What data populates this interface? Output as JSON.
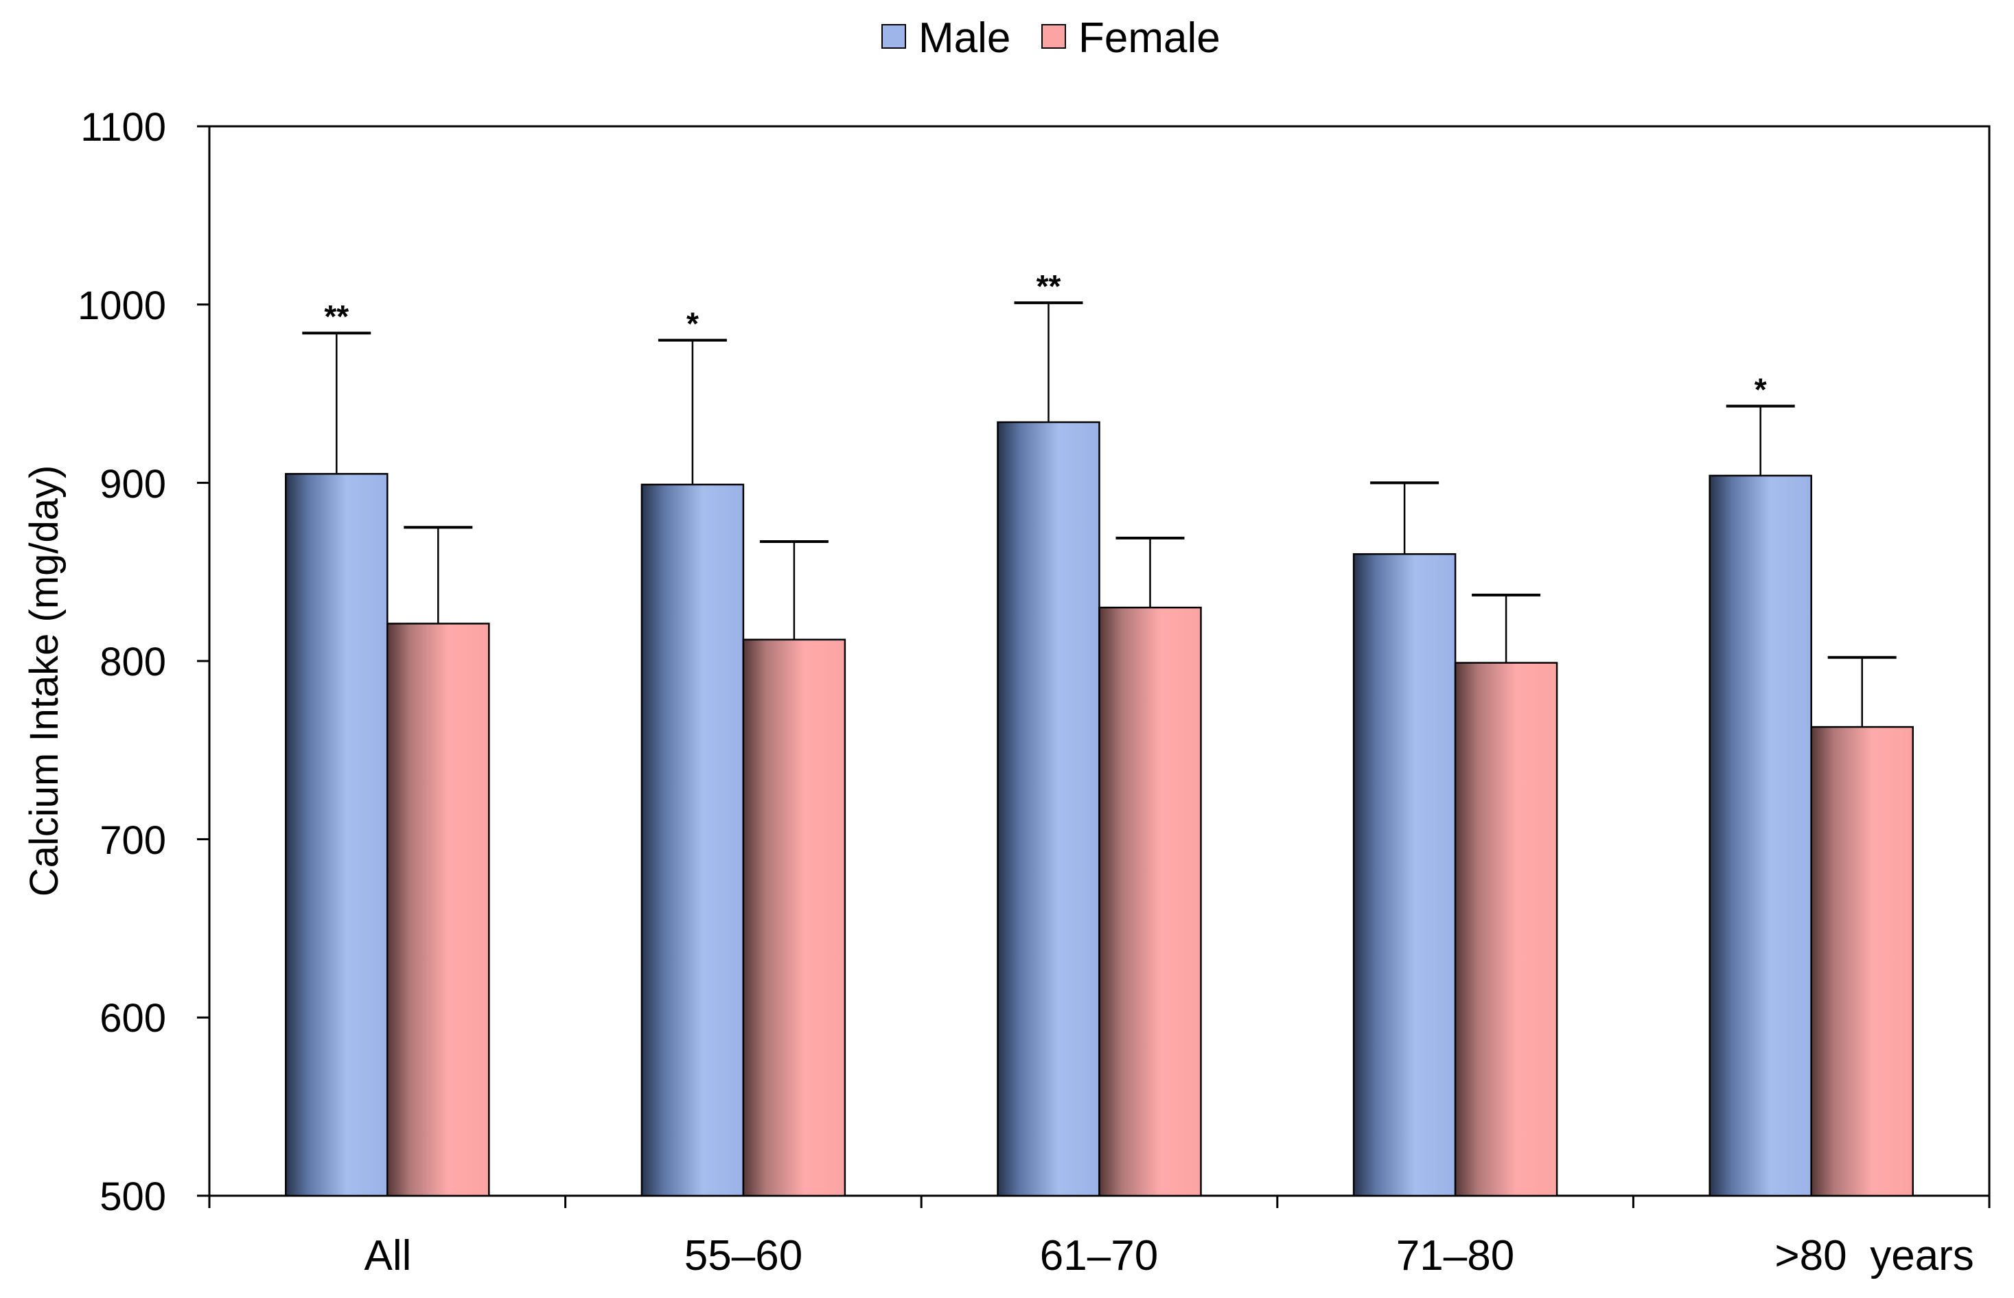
{
  "chart_data": {
    "type": "bar",
    "title": "",
    "xlabel": "",
    "ylabel": "Calcium Intake (mg/day)",
    "ylim": [
      500,
      1100
    ],
    "yticks": [
      "500",
      "600",
      "700",
      "800",
      "900",
      "1000",
      "1100"
    ],
    "ytick_values": [
      500,
      600,
      700,
      800,
      900,
      1000,
      1100
    ],
    "categories": [
      "All",
      "55–60",
      "61–70",
      "71–80",
      ">80"
    ],
    "category_suffix": "years",
    "grid": false,
    "legend_position": "top-center",
    "series": [
      {
        "name": "Male",
        "color": "#9DB5E8",
        "values": [
          905,
          899,
          934,
          860,
          904
        ],
        "error_upper": [
          984,
          980,
          1001,
          900,
          943
        ],
        "significance": [
          "**",
          "*",
          "**",
          "",
          "*"
        ]
      },
      {
        "name": "Female",
        "color": "#FCA3A3",
        "values": [
          821,
          812,
          830,
          799,
          763
        ],
        "error_upper": [
          875,
          867,
          869,
          837,
          802
        ],
        "significance": [
          "",
          "",
          "",
          "",
          ""
        ]
      }
    ]
  }
}
